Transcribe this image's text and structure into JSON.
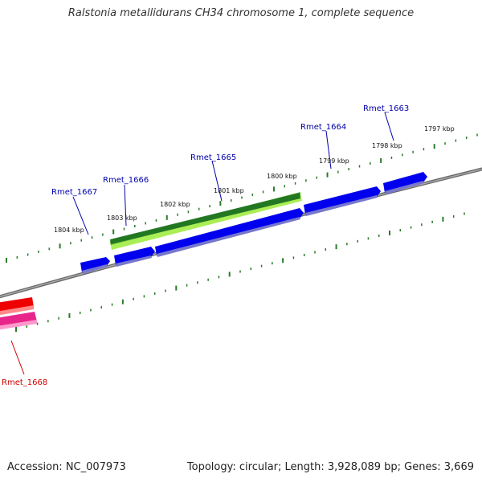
{
  "title": "Ralstonia metallidurans CH34 chromosome 1, complete sequence",
  "footer": {
    "accession": "Accession: NC_007973",
    "summary": "Topology: circular; Length: 3,928,089 bp; Genes: 3,669"
  },
  "colors": {
    "backbone": "#808080",
    "gene": "#0000ee",
    "gene_label": "#0000aa",
    "red_gene": "#ee0000",
    "red_label": "#cc0000",
    "pink_gene": "#e8258a",
    "tick": "#2a7a2a",
    "gc_dark": "#227722",
    "gc_light": "#aaee55"
  },
  "kbp_labels": [
    "1804 kbp",
    "1803 kbp",
    "1802 kbp",
    "1801 kbp",
    "1800 kbp",
    "1799 kbp",
    "1798 kbp",
    "1797 kbp"
  ],
  "genes": [
    {
      "label": "Rmet_1663",
      "color": "blue"
    },
    {
      "label": "Rmet_1664",
      "color": "blue"
    },
    {
      "label": "Rmet_1665",
      "color": "blue"
    },
    {
      "label": "Rmet_1666",
      "color": "blue"
    },
    {
      "label": "Rmet_1667",
      "color": "blue"
    },
    {
      "label": "Rmet_1668",
      "color": "red"
    }
  ]
}
